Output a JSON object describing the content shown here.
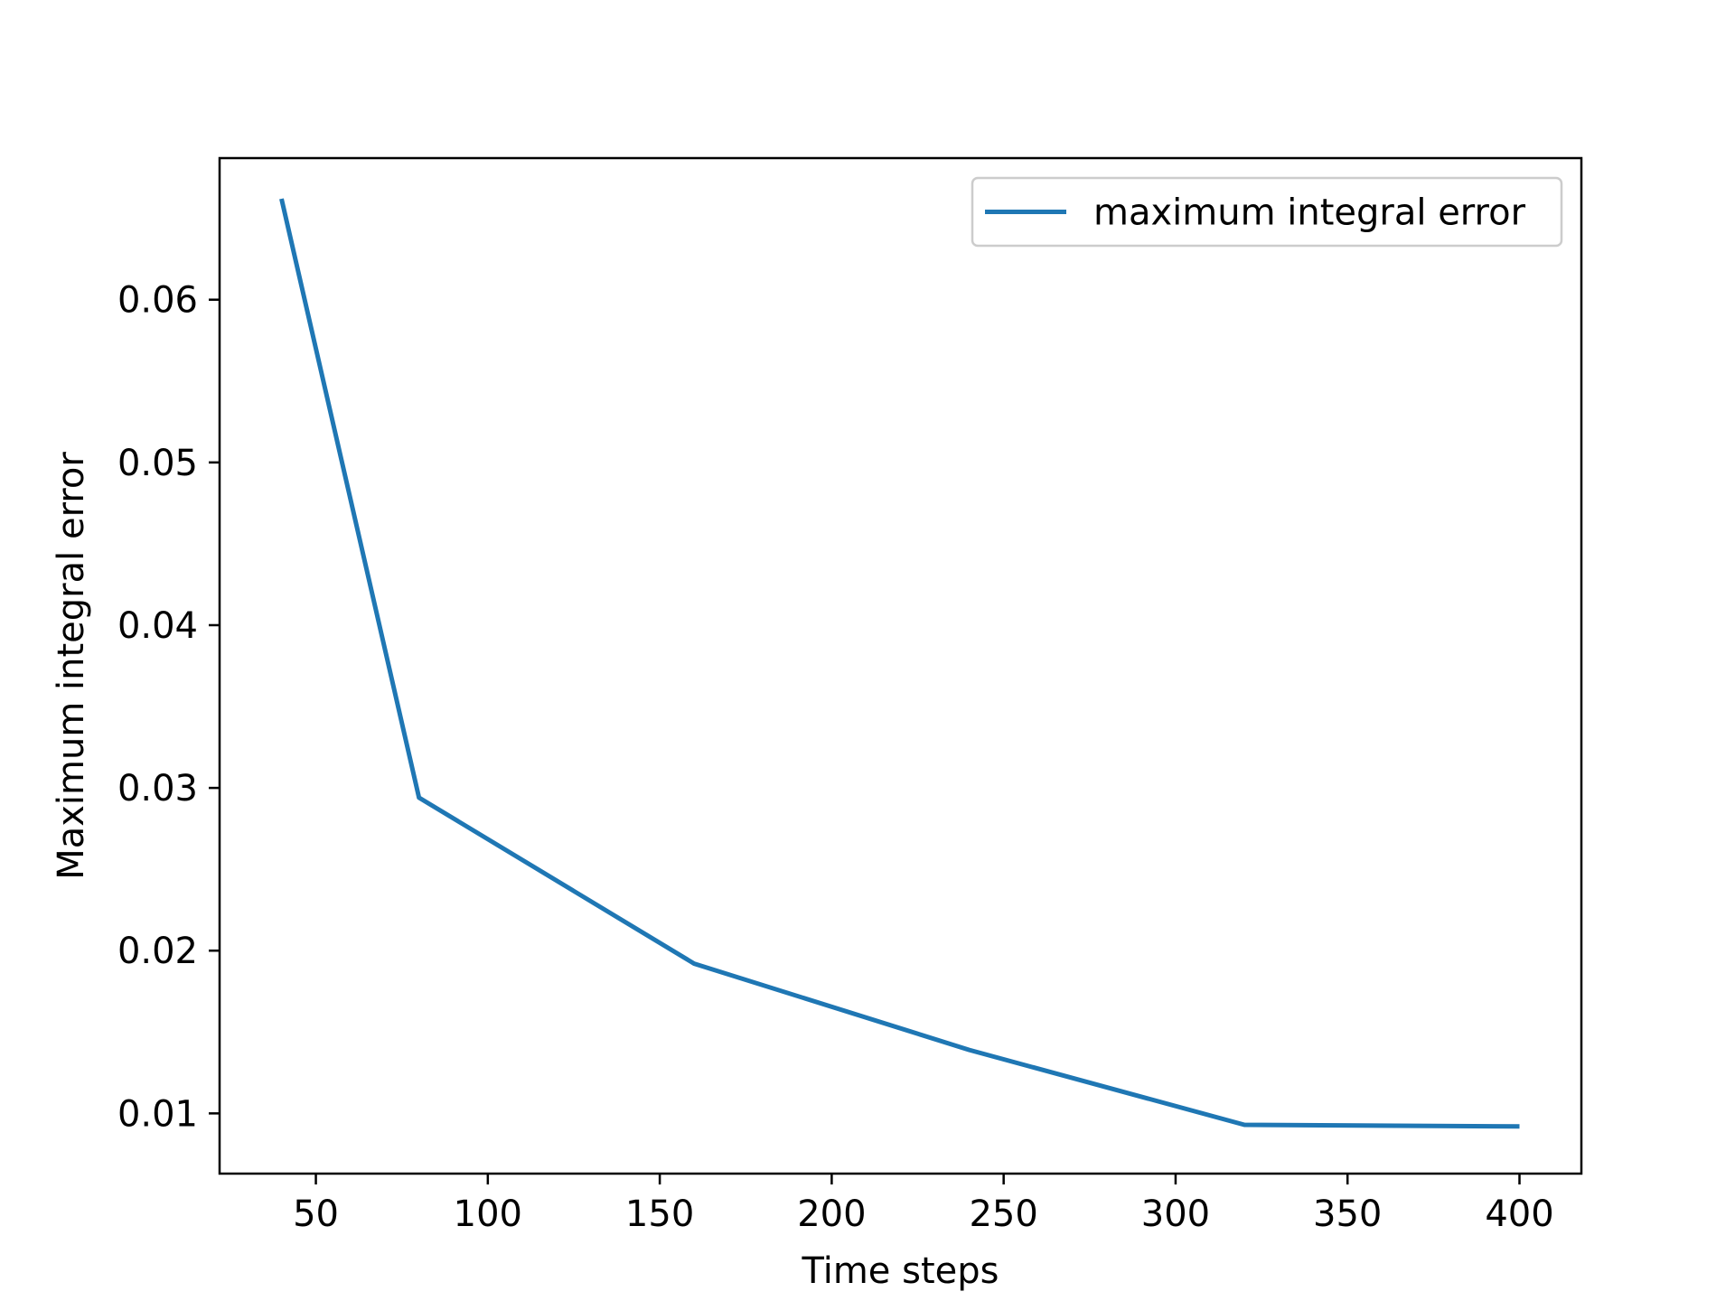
{
  "chart_data": {
    "type": "line",
    "title": "",
    "xlabel": "Time steps",
    "ylabel": "Maximum integral error",
    "xlim": [
      22,
      418
    ],
    "ylim": [
      0.0063,
      0.0687
    ],
    "xticks": [
      50,
      100,
      150,
      200,
      250,
      300,
      350,
      400
    ],
    "xtick_labels": [
      "50",
      "100",
      "150",
      "200",
      "250",
      "300",
      "350",
      "400"
    ],
    "yticks": [
      0.01,
      0.02,
      0.03,
      0.04,
      0.05,
      0.06
    ],
    "ytick_labels": [
      "0.01",
      "0.02",
      "0.03",
      "0.04",
      "0.05",
      "0.06"
    ],
    "grid": false,
    "legend_position": "top-right",
    "series": [
      {
        "name": "maximum integral error",
        "color": "#1f77b4",
        "x": [
          40,
          80,
          160,
          240,
          320,
          400
        ],
        "y": [
          0.0662,
          0.0294,
          0.0192,
          0.0139,
          0.0093,
          0.0092
        ]
      }
    ]
  }
}
